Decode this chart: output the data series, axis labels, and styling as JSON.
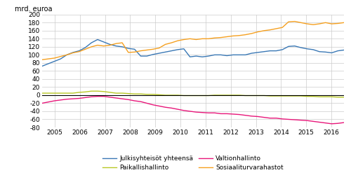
{
  "ylabel": "mrd. euroa",
  "ylim": [
    -80,
    200
  ],
  "yticks": [
    -80,
    -60,
    -40,
    -20,
    0,
    20,
    40,
    60,
    80,
    100,
    120,
    140,
    160,
    180,
    200
  ],
  "xlim": [
    2004.5,
    2016.5
  ],
  "xticks": [
    2005,
    2006,
    2007,
    2008,
    2009,
    2010,
    2011,
    2012,
    2013,
    2014,
    2015,
    2016
  ],
  "colors": {
    "julkis": "#3a78b5",
    "valtio": "#e8177a",
    "paikallis": "#b8c825",
    "sosiaali": "#f5a020"
  },
  "legend": [
    "Julkisyhteisöt yhteensä",
    "Valtionhallinto",
    "Paikallishallinto",
    "Sosiaaliturvarahastot"
  ],
  "julkis": [
    72,
    78,
    84,
    90,
    100,
    106,
    110,
    118,
    130,
    138,
    132,
    126,
    122,
    120,
    116,
    114,
    97,
    97,
    101,
    104,
    107,
    110,
    113,
    115,
    95,
    97,
    95,
    97,
    100,
    100,
    98,
    100,
    100,
    100,
    104,
    106,
    108,
    110,
    110,
    113,
    121,
    122,
    118,
    115,
    113,
    108,
    107,
    105,
    110,
    112
  ],
  "valtio": [
    -20,
    -17,
    -14,
    -12,
    -10,
    -9,
    -8,
    -6,
    -4,
    -3,
    -3,
    -5,
    -7,
    -9,
    -11,
    -14,
    -16,
    -20,
    -24,
    -27,
    -30,
    -32,
    -35,
    -38,
    -40,
    -42,
    -43,
    -44,
    -44,
    -46,
    -46,
    -47,
    -48,
    -50,
    -52,
    -53,
    -55,
    -57,
    -57,
    -59,
    -60,
    -61,
    -62,
    -63,
    -65,
    -67,
    -69,
    -71,
    -70,
    -68
  ],
  "paikallis": [
    5,
    5,
    5,
    5,
    5,
    5,
    7,
    8,
    10,
    10,
    9,
    7,
    5,
    5,
    4,
    3,
    3,
    2,
    2,
    1,
    0,
    0,
    0,
    -1,
    -1,
    -1,
    -1,
    -1,
    0,
    0,
    0,
    0,
    0,
    -1,
    -1,
    -1,
    -1,
    -2,
    -2,
    -2,
    -2,
    -2,
    -2,
    -3,
    -3,
    -4,
    -4,
    -4,
    -5,
    -5
  ],
  "sosiaali": [
    88,
    90,
    92,
    96,
    100,
    105,
    108,
    114,
    120,
    124,
    122,
    124,
    128,
    130,
    106,
    107,
    110,
    112,
    114,
    117,
    126,
    130,
    135,
    138,
    140,
    138,
    140,
    140,
    142,
    143,
    145,
    147,
    148,
    150,
    153,
    157,
    160,
    162,
    165,
    168,
    182,
    183,
    180,
    177,
    175,
    177,
    180,
    177,
    178,
    180
  ],
  "n_points": 50,
  "x_start": 2004.5,
  "x_end": 2016.5,
  "figsize": [
    5.0,
    2.6
  ],
  "dpi": 100
}
